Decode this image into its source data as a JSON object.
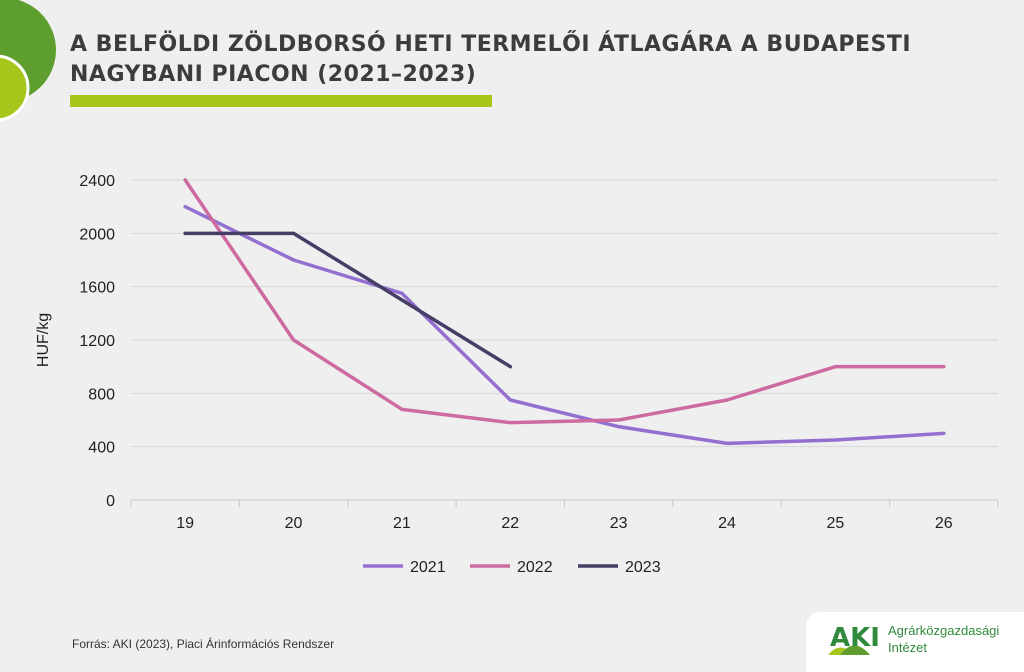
{
  "header": {
    "title_line1": "A BELFÖLDI ZÖLDBORSÓ HETI TERMELŐI ÁTLAGÁRA A BUDAPESTI",
    "title_line2": "NAGYBANI PIACON (2021–2023)"
  },
  "chart_data": {
    "type": "line",
    "ylabel": "HUF/kg",
    "xlabel": "",
    "categories": [
      "19",
      "20",
      "21",
      "22",
      "23",
      "24",
      "25",
      "26"
    ],
    "ylim": [
      0,
      2400
    ],
    "yticks": [
      "0",
      "400",
      "800",
      "1200",
      "1600",
      "2000",
      "2400"
    ],
    "grid": true,
    "legend_position": "bottom",
    "series": [
      {
        "name": "2021",
        "color": "#9370d0",
        "values": [
          2200,
          1800,
          1550,
          750,
          550,
          425,
          450,
          500
        ]
      },
      {
        "name": "2022",
        "color": "#cd6aa0",
        "values": [
          2400,
          1200,
          680,
          580,
          600,
          750,
          1000,
          1000
        ]
      },
      {
        "name": "2023",
        "color": "#463e66",
        "values": [
          2000,
          2000,
          1500,
          1000,
          null,
          null,
          null,
          null
        ]
      }
    ]
  },
  "footer": {
    "source": "Forrás: AKI (2023), Piaci Árinformációs Rendszer",
    "logo_abbr": "AKI",
    "logo_line1": "Agrárközgazdasági",
    "logo_line2": "Intézet"
  },
  "colors": {
    "accent_green": "#a6c61c",
    "dark_green": "#5e9e2e",
    "logo_green": "#2f8a3c"
  }
}
